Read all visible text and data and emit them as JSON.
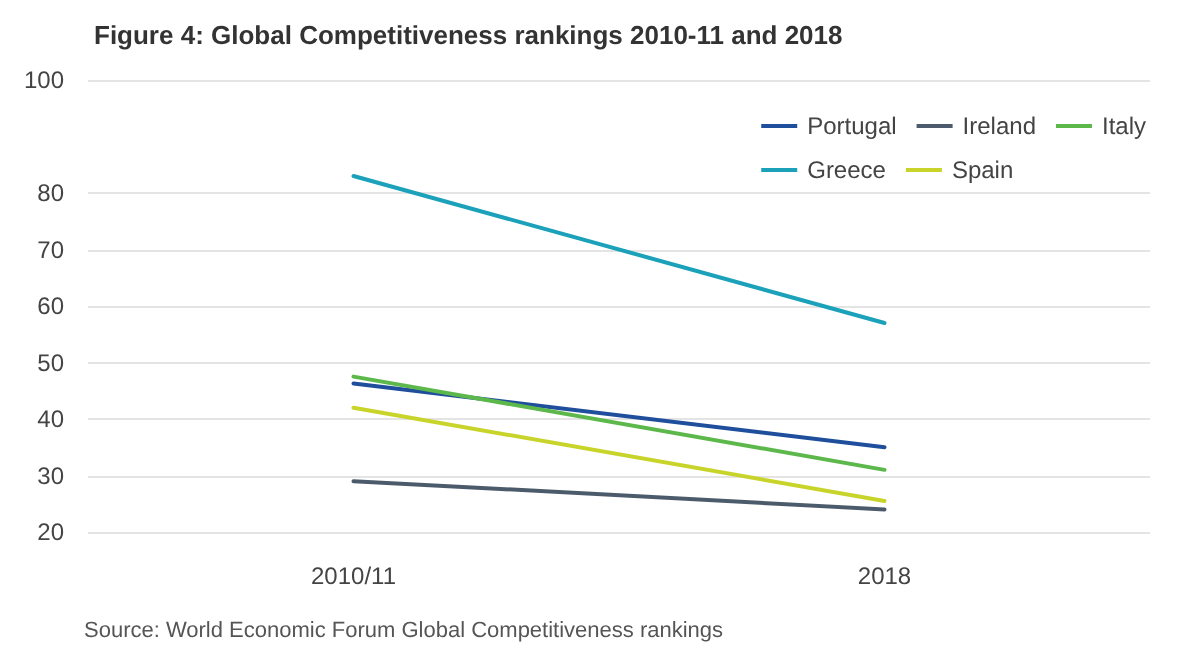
{
  "chart_data": {
    "type": "line",
    "title": "Figure 4: Global Competitiveness rankings 2010-11 and 2018",
    "categories": [
      "2010/11",
      "2018"
    ],
    "series": [
      {
        "name": "Portugal",
        "color": "#1f4e9c",
        "values": [
          46.3,
          35
        ]
      },
      {
        "name": "Ireland",
        "color": "#4c5b6b",
        "values": [
          29,
          24
        ]
      },
      {
        "name": "Italy",
        "color": "#5db84b",
        "values": [
          47.5,
          31
        ]
      },
      {
        "name": "Greece",
        "color": "#1ba1b9",
        "values": [
          83,
          57
        ]
      },
      {
        "name": "Spain",
        "color": "#c9d42b",
        "values": [
          42,
          25.5
        ]
      }
    ],
    "ylim": [
      20,
      100
    ],
    "yticks": [
      20,
      30,
      40,
      50,
      60,
      70,
      80,
      100
    ],
    "grid": "y",
    "legend": "top right",
    "marker": "none",
    "line_style": "solid",
    "annotations": [
      "Source: World Economic Forum Global Competitiveness rankings"
    ]
  }
}
